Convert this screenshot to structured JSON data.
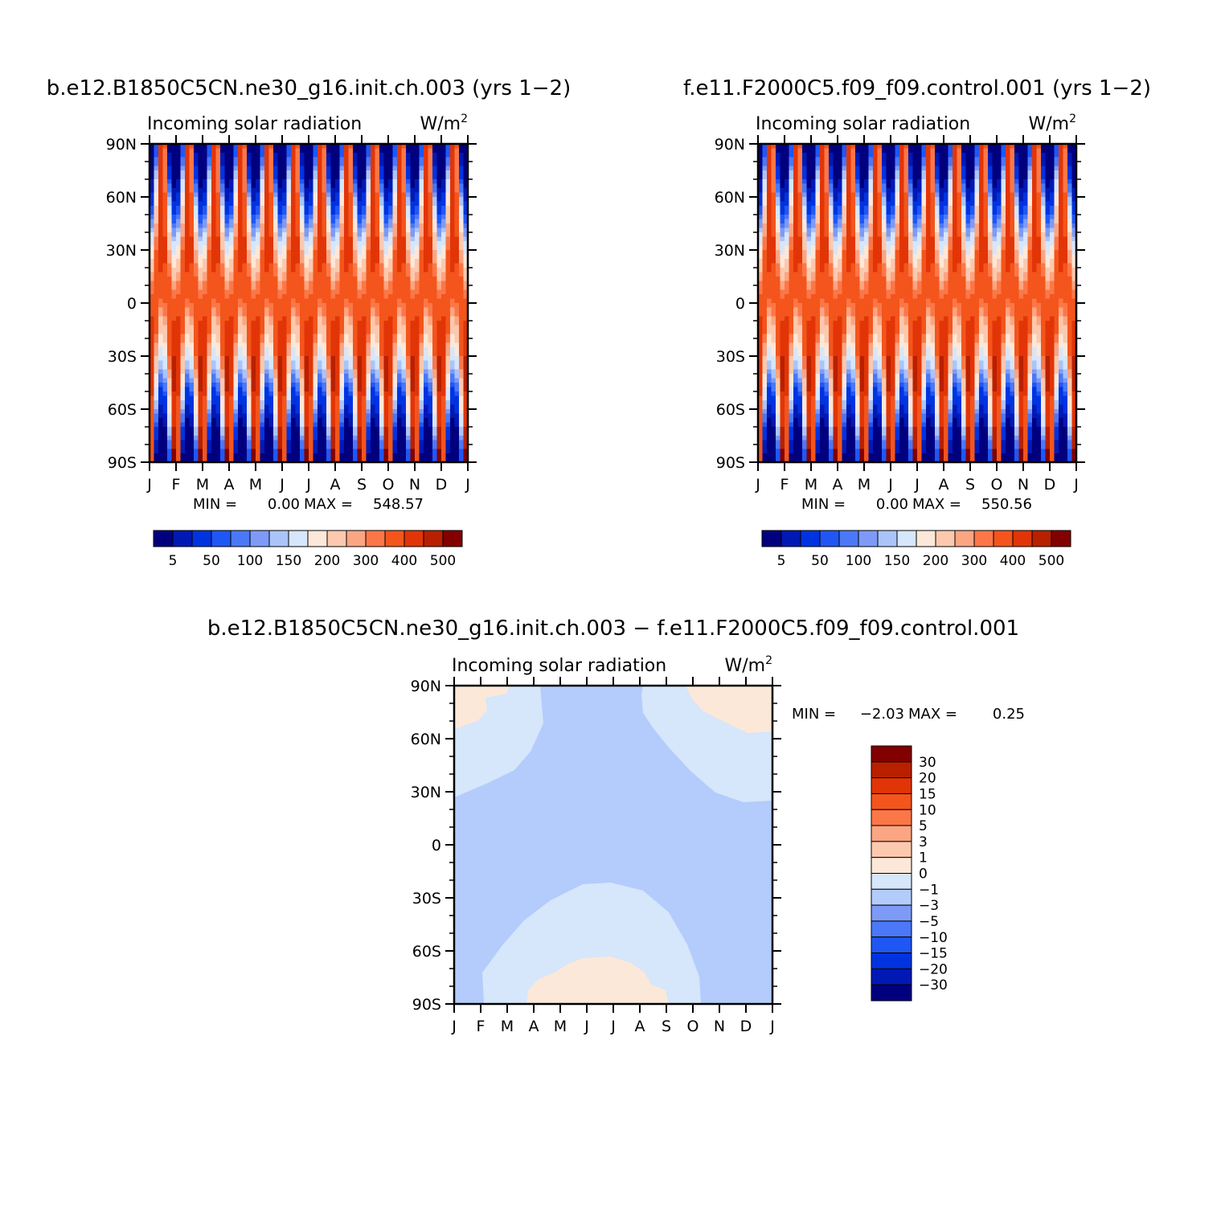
{
  "chart_data": [
    {
      "type": "heatmap",
      "title": "b.e12.B1850C5CN.ne30_g16.init.ch.003 (yrs 1−2)",
      "left_string": "Incoming solar radiation",
      "units_base": "W/m",
      "units_exp": "2",
      "x": [
        "J",
        "F",
        "M",
        "A",
        "M",
        "J",
        "J",
        "A",
        "S",
        "O",
        "N",
        "D",
        "J"
      ],
      "y_ticks": [
        "90N",
        "60N",
        "30N",
        "0",
        "30S",
        "60S",
        "90S"
      ],
      "y_values": [
        90,
        60,
        30,
        0,
        -30,
        -60,
        -90
      ],
      "stats": {
        "min_label": "MIN =",
        "min": "0.00",
        "max_label": "MAX =",
        "max": "548.57"
      },
      "colorbar": {
        "orientation": "horizontal",
        "labels": [
          "5",
          "50",
          "100",
          "150",
          "200",
          "300",
          "400",
          "500"
        ],
        "colors": [
          "#00007f",
          "#0019b5",
          "#0033e0",
          "#1f57f5",
          "#4a78f7",
          "#7d9af7",
          "#aac4f9",
          "#d6e6fb",
          "#fce8d8",
          "#fcc9ae",
          "#fca582",
          "#fc7747",
          "#f3551c",
          "#e23507",
          "#b82000",
          "#820000"
        ]
      }
    },
    {
      "type": "heatmap",
      "title": "f.e11.F2000C5.f09_f09.control.001 (yrs 1−2)",
      "left_string": "Incoming solar radiation",
      "units_base": "W/m",
      "units_exp": "2",
      "x": [
        "J",
        "F",
        "M",
        "A",
        "M",
        "J",
        "J",
        "A",
        "S",
        "O",
        "N",
        "D",
        "J"
      ],
      "y_ticks": [
        "90N",
        "60N",
        "30N",
        "0",
        "30S",
        "60S",
        "90S"
      ],
      "y_values": [
        90,
        60,
        30,
        0,
        -30,
        -60,
        -90
      ],
      "stats": {
        "min_label": "MIN =",
        "min": "0.00",
        "max_label": "MAX =",
        "max": "550.56"
      },
      "colorbar": {
        "orientation": "horizontal",
        "labels": [
          "5",
          "50",
          "100",
          "150",
          "200",
          "300",
          "400",
          "500"
        ],
        "colors": [
          "#00007f",
          "#0019b5",
          "#0033e0",
          "#1f57f5",
          "#4a78f7",
          "#7d9af7",
          "#aac4f9",
          "#d6e6fb",
          "#fce8d8",
          "#fcc9ae",
          "#fca582",
          "#fc7747",
          "#f3551c",
          "#e23507",
          "#b82000",
          "#820000"
        ]
      }
    },
    {
      "type": "heatmap",
      "title": "b.e12.B1850C5CN.ne30_g16.init.ch.003 − f.e11.F2000C5.f09_f09.control.001",
      "left_string": "Incoming solar radiation",
      "units_base": "W/m",
      "units_exp": "2",
      "x": [
        "J",
        "F",
        "M",
        "A",
        "M",
        "J",
        "J",
        "A",
        "S",
        "O",
        "N",
        "D",
        "J"
      ],
      "y_ticks": [
        "90N",
        "60N",
        "30N",
        "0",
        "30S",
        "60S",
        "90S"
      ],
      "y_values": [
        90,
        60,
        30,
        0,
        -30,
        -60,
        -90
      ],
      "stats": {
        "min_label": "MIN =",
        "min": "−2.03",
        "max_label": "MAX =",
        "max": "0.25"
      },
      "colorbar": {
        "orientation": "vertical",
        "labels": [
          "30",
          "20",
          "15",
          "10",
          "5",
          "3",
          "1",
          "0",
          "−1",
          "−3",
          "−5",
          "−10",
          "−15",
          "−20",
          "−30"
        ],
        "colors": [
          "#820000",
          "#b82000",
          "#e23507",
          "#f3551c",
          "#fc7747",
          "#fca582",
          "#fcc9ae",
          "#fce8d8",
          "#d6e6fb",
          "#b3ccfb",
          "#7d9af7",
          "#4a78f7",
          "#1f57f5",
          "#0033e0",
          "#0019b5",
          "#00007f"
        ]
      },
      "colors": {
        "diff_bg": "#b3ccfb",
        "diff_light": "#d6e6fb",
        "diff_pos": "#fce8d8"
      }
    }
  ]
}
